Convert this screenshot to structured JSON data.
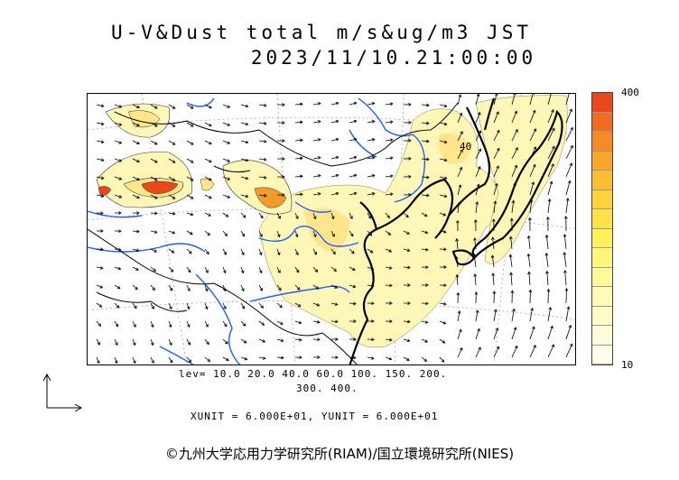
{
  "title_line1": "U-V&Dust total m/s&ug/m3 JST",
  "title_line2": "2023/11/10.21:00:00",
  "legend": {
    "max_label": "400",
    "min_label": "10",
    "colors": [
      "#e8481a",
      "#f06a20",
      "#f58a26",
      "#f8a62c",
      "#fbbd33",
      "#fdd23a",
      "#fee346",
      "#fff05c",
      "#fff67a",
      "#fff99a",
      "#fffbb6",
      "#fffcc8",
      "#fffdd9",
      "#fffee8"
    ]
  },
  "levels_line1": "lev= 10.0 20.0 40.0 60.0 100. 150. 200.",
  "levels_line2": "300. 400.",
  "units_line": "XUNIT = 6.000E+01, YUNIT = 6.000E+01",
  "contour_label": "40",
  "copyright": "©九州大学応用力学研究所(RIAM)/国立環境研究所(NIES)",
  "colors": {
    "dust_low": "#fff7b8",
    "dust_mid": "#ffe68a",
    "dust_high": "#f39b2a",
    "dust_peak": "#e8481a",
    "rivers": "#1f5bff",
    "coast": "#000000"
  }
}
